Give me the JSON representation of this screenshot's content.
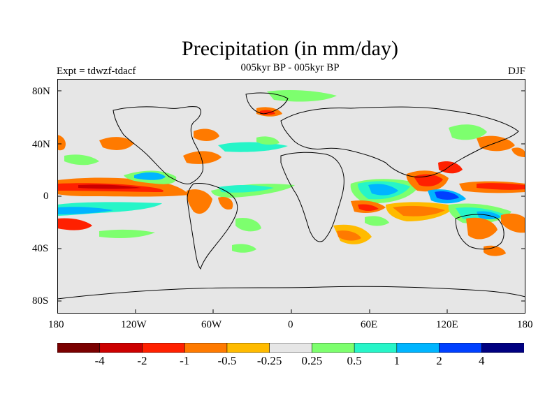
{
  "title": "Precipitation (in mm/day)",
  "subtitle_center": "005kyr BP - 005kyr BP",
  "subtitle_left": "Expt = tdwzf-tdacf",
  "subtitle_right": "DJF",
  "colors": {
    "land_ocean_background": "#e6e6e6",
    "coastline": "#000000",
    "palette": [
      "#7a0000",
      "#cc0000",
      "#ff2000",
      "#ff7a00",
      "#ffbb00",
      "#e6e6e6",
      "#7dff6e",
      "#26f5c8",
      "#00b5ff",
      "#0040ff",
      "#000080"
    ]
  },
  "chart_data": {
    "type": "heatmap",
    "projection": "cylindrical equidistant",
    "field": "precipitation difference",
    "units": "mm/day",
    "season": "DJF",
    "x_ticks": [
      "180",
      "120W",
      "60W",
      "0",
      "60E",
      "120E",
      "180"
    ],
    "y_ticks": [
      "80N",
      "40N",
      "0",
      "40S",
      "80S"
    ],
    "xlim": [
      -180,
      180
    ],
    "ylim": [
      -90,
      90
    ],
    "colorbar": {
      "levels": [
        "-4",
        "-2",
        "-1",
        "-0.5",
        "-0.25",
        "0.25",
        "0.5",
        "1",
        "2",
        "4"
      ],
      "bins": 11
    }
  }
}
